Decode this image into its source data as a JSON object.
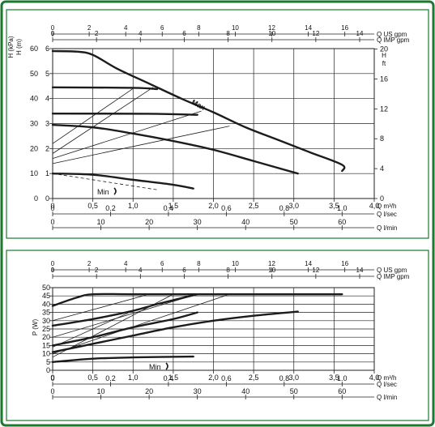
{
  "colors": {
    "frame": "#1a7a2e",
    "curve": "#1c1c1c",
    "grid": "#222222",
    "background": "#ffffff"
  },
  "chart_data": [
    {
      "type": "line",
      "id": "head",
      "ylabel": "H (kPa)",
      "ylabel2": "H (m)",
      "ylabel_right": "H",
      "ylabel_right2": "ft",
      "ylim": [
        0,
        60
      ],
      "yticks_m": [
        "0",
        "1",
        "2",
        "3",
        "4",
        "5",
        "6"
      ],
      "yticks_kpa": [
        "0",
        "10",
        "20",
        "30",
        "40",
        "50",
        "60"
      ],
      "yticks_ft": [
        "0",
        "4",
        "8",
        "12",
        "16",
        "20"
      ],
      "xlim": [
        0,
        4.0
      ],
      "x_primary_label": "Q m³/h",
      "x_primary_ticks": [
        "0",
        "0,5",
        "1,0",
        "1,5",
        "2,0",
        "2,5",
        "3,0",
        "3,5",
        "4,0"
      ],
      "x_lsec_label": "Q l/sec",
      "x_lsec_ticks": [
        "0",
        "0.2",
        "0.4",
        "0.6",
        "0.8",
        "1.0"
      ],
      "x_lmin_label": "Q l/min",
      "x_lmin_ticks": [
        "0",
        "10",
        "20",
        "30",
        "40",
        "50",
        "60"
      ],
      "x_usgpm_label": "Q US gpm",
      "x_usgpm_ticks": [
        "0",
        "2",
        "4",
        "6",
        "8",
        "10",
        "12",
        "14",
        "16"
      ],
      "x_impgpm_label": "Q IMP gpm",
      "x_impgpm_ticks": [
        "0",
        "2",
        "4",
        "6",
        "8",
        "10",
        "12",
        "14"
      ],
      "max_label": "Max",
      "min_label": "Min",
      "series": [
        {
          "name": "Max",
          "points": [
            [
              0,
              59
            ],
            [
              0.3,
              58.8
            ],
            [
              0.5,
              57.5
            ],
            [
              0.8,
              52
            ],
            [
              1.2,
              46
            ],
            [
              1.6,
              40
            ],
            [
              2.0,
              34.5
            ],
            [
              2.4,
              28.5
            ],
            [
              2.8,
              23.5
            ],
            [
              3.2,
              18.5
            ],
            [
              3.6,
              13.5
            ],
            [
              3.6,
              11
            ]
          ]
        },
        {
          "name": "",
          "points": [
            [
              0,
              44.5
            ],
            [
              1.0,
              44.3
            ],
            [
              1.3,
              43.8
            ]
          ]
        },
        {
          "name": "",
          "points": [
            [
              0,
              34
            ],
            [
              1.2,
              33.9
            ],
            [
              1.8,
              33.5
            ]
          ]
        },
        {
          "name": "",
          "points": [
            [
              0,
              29.5
            ],
            [
              0.5,
              28.5
            ],
            [
              1.0,
              26
            ],
            [
              1.5,
              23
            ],
            [
              2.0,
              19.5
            ],
            [
              2.5,
              15
            ],
            [
              3.05,
              10
            ]
          ]
        },
        {
          "name": "Min",
          "points": [
            [
              0,
              10
            ],
            [
              0.5,
              9.5
            ],
            [
              1.0,
              7.5
            ],
            [
              1.5,
              5.5
            ],
            [
              1.75,
              4
            ]
          ]
        }
      ],
      "thin_lines": [
        [
          [
            0,
            18
          ],
          [
            1.25,
            44.5
          ]
        ],
        [
          [
            0,
            16
          ],
          [
            1.85,
            35
          ]
        ],
        [
          [
            0,
            14
          ],
          [
            2.2,
            29
          ]
        ],
        [
          [
            0,
            22
          ],
          [
            1.0,
            44
          ]
        ]
      ],
      "min_dashed": [
        [
          0,
          10
        ],
        [
          1.3,
          3.5
        ]
      ]
    },
    {
      "type": "line",
      "id": "power",
      "ylabel": "P (W)",
      "ylim": [
        0,
        50
      ],
      "yticks": [
        "0",
        "5",
        "10",
        "15",
        "20",
        "25",
        "30",
        "35",
        "40",
        "45",
        "50"
      ],
      "xlim": [
        0,
        4.0
      ],
      "x_primary_label": "Q m³/h",
      "x_primary_ticks": [
        "0",
        "0,5",
        "1,0",
        "1,5",
        "2,0",
        "2,5",
        "3,0",
        "3,5",
        "4,0"
      ],
      "x_lsec_label": "Q l/sec",
      "x_lsec_ticks": [
        "0",
        "0.2",
        "0.4",
        "0.6",
        "0.8",
        "1.0"
      ],
      "x_lmin_label": "Q l/min",
      "x_lmin_ticks": [
        "0",
        "10",
        "20",
        "30",
        "40",
        "50",
        "60"
      ],
      "x_usgpm_label": "Q US gpm",
      "x_usgpm_ticks": [
        "0",
        "2",
        "4",
        "6",
        "8",
        "10",
        "12",
        "14",
        "16"
      ],
      "x_impgpm_label": "Q IMP gpm",
      "x_impgpm_ticks": [
        "0",
        "2",
        "4",
        "6",
        "8",
        "10",
        "12",
        "14"
      ],
      "min_label": "Min",
      "series": [
        {
          "name": "",
          "points": [
            [
              0,
              39
            ],
            [
              0.3,
              44
            ],
            [
              0.5,
              46
            ],
            [
              1.0,
              46
            ],
            [
              2.0,
              46
            ],
            [
              3.0,
              46
            ],
            [
              3.6,
              46
            ]
          ]
        },
        {
          "name": "",
          "points": [
            [
              0,
              27
            ],
            [
              0.5,
              31
            ],
            [
              1.0,
              36
            ],
            [
              1.3,
              40
            ],
            [
              1.8,
              46
            ]
          ]
        },
        {
          "name": "",
          "points": [
            [
              0,
              15
            ],
            [
              0.5,
              20
            ],
            [
              1.0,
              26
            ],
            [
              1.5,
              31
            ],
            [
              1.8,
              35
            ]
          ]
        },
        {
          "name": "",
          "points": [
            [
              0,
              11
            ],
            [
              0.5,
              16
            ],
            [
              1.0,
              21
            ],
            [
              1.5,
              26
            ],
            [
              2.0,
              30
            ],
            [
              2.5,
              33
            ],
            [
              3.05,
              35.5
            ]
          ]
        },
        {
          "name": "Min",
          "points": [
            [
              0,
              5
            ],
            [
              0.5,
              7
            ],
            [
              1.0,
              7.8
            ],
            [
              1.75,
              8.3
            ]
          ]
        }
      ],
      "thin_lines": [
        [
          [
            0,
            30
          ],
          [
            1.2,
            46
          ]
        ],
        [
          [
            0,
            20
          ],
          [
            1.8,
            46
          ]
        ],
        [
          [
            0,
            10
          ],
          [
            2.2,
            46
          ]
        ],
        [
          [
            0,
            8
          ],
          [
            1.5,
            46
          ]
        ],
        [
          [
            0,
            14
          ],
          [
            1.0,
            36
          ]
        ]
      ]
    }
  ]
}
